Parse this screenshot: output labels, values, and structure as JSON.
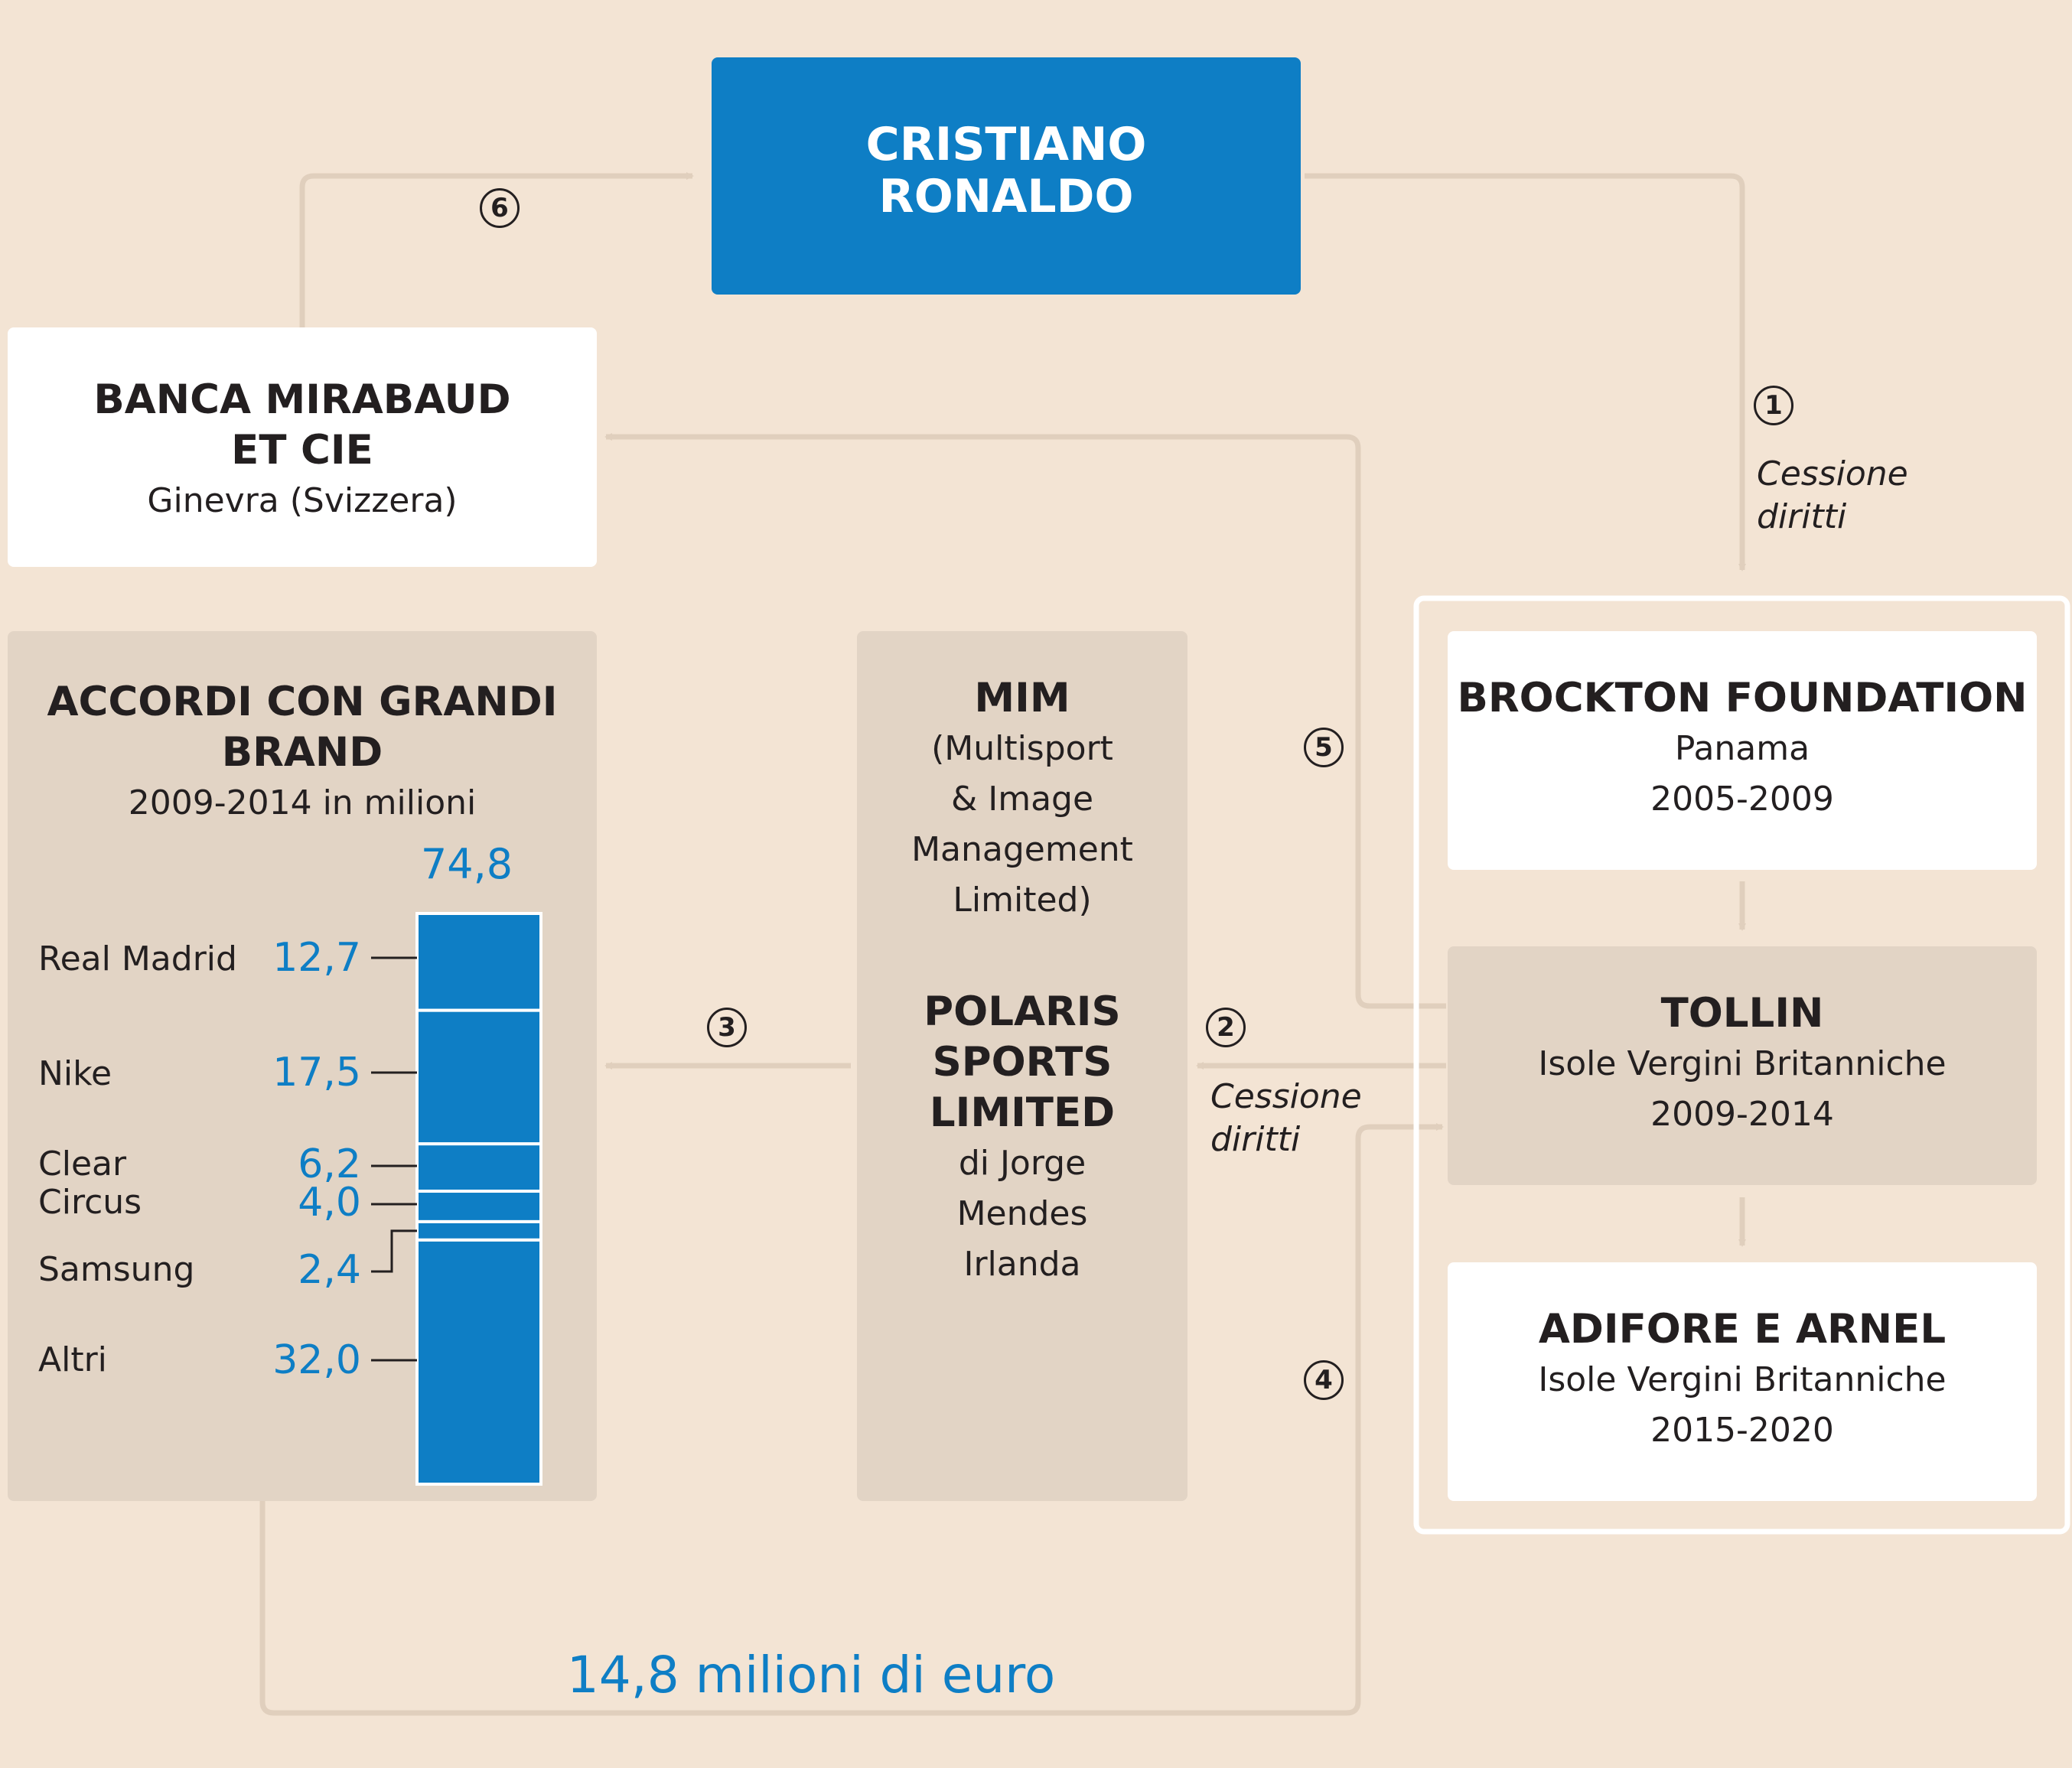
{
  "ronaldo": {
    "line1": "CRISTIANO",
    "line2": "RONALDO"
  },
  "mirabaud": {
    "line1": "BANCA MIRABAUD",
    "line2": "ET CIE",
    "location": "Ginevra (Svizzera)"
  },
  "brands_panel": {
    "title1": "ACCORDI CON GRANDI",
    "title2": "BRAND",
    "subtitle": "2009-2014 in milioni",
    "total": "74,8"
  },
  "chart_data": {
    "type": "bar",
    "stacked": true,
    "title": "ACCORDI CON GRANDI BRAND",
    "subtitle": "2009-2014 in milioni",
    "total": 74.8,
    "categories": [
      "Real Madrid",
      "Nike",
      "Clear Circus",
      "Samsung",
      "Altri"
    ],
    "segments": [
      {
        "name": "Real Madrid",
        "value": 12.7,
        "label": "12,7"
      },
      {
        "name": "Nike",
        "value": 17.5,
        "label": "17,5"
      },
      {
        "name": "Clear",
        "value": 6.2,
        "label": "6,2"
      },
      {
        "name": "Circus",
        "value": 4.0,
        "label": "4,0"
      },
      {
        "name": "Samsung",
        "value": 2.4,
        "label": "2,4"
      },
      {
        "name": "Altri",
        "value": 32.0,
        "label": "32,0"
      }
    ],
    "brand_labels": [
      "Real Madrid",
      "Nike",
      "Clear",
      "Circus",
      "Samsung",
      "Altri"
    ]
  },
  "mim": {
    "title": "MIM",
    "desc1": "(Multisport",
    "desc2": "& Image",
    "desc3": "Management",
    "desc4": "Limited)",
    "polaris1": "POLARIS",
    "polaris2": "SPORTS",
    "polaris3": "LIMITED",
    "detail1": "di Jorge",
    "detail2": "Mendes",
    "detail3": "Irlanda"
  },
  "brockton": {
    "title": "BROCKTON FOUNDATION",
    "location": "Panama",
    "years": "2005-2009"
  },
  "tollin": {
    "title": "TOLLIN",
    "location": "Isole Vergini Britanniche",
    "years": "2009-2014"
  },
  "adifore": {
    "title": "ADIFORE E ARNEL",
    "location": "Isole Vergini Britanniche",
    "years": "2015-2020"
  },
  "steps": {
    "s1": "1",
    "s2": "2",
    "s3": "3",
    "s4": "4",
    "s5": "5",
    "s6": "6"
  },
  "labels": {
    "cessione1a": "Cessione",
    "cessione1b": "diritti",
    "cessione2a": "Cessione",
    "cessione2b": "diritti"
  },
  "payment": "14,8 milioni di euro",
  "colors": {
    "background": "#f3e4d4",
    "blue": "#0e7ec5",
    "panel": "#e2d4c5",
    "arrow": "#e0cfbd"
  }
}
